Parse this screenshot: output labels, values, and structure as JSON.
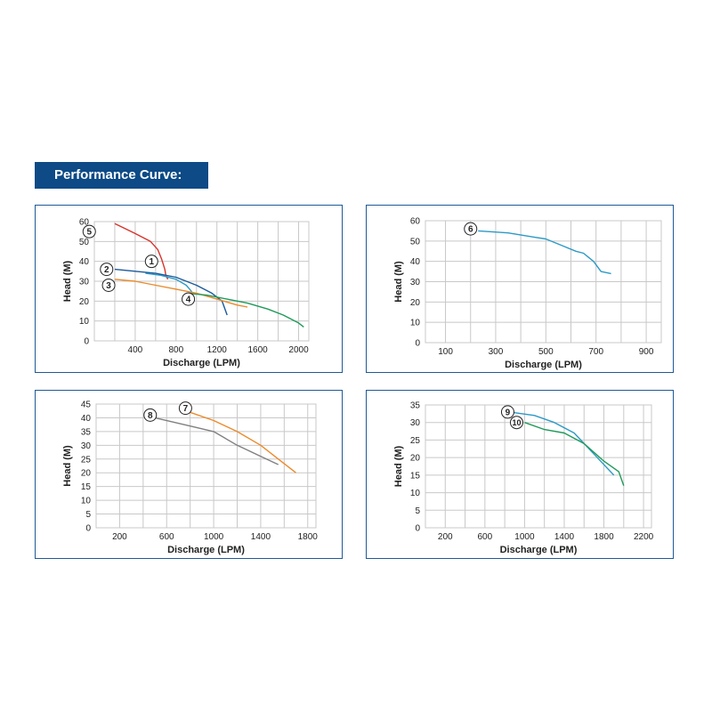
{
  "header": {
    "title": "Performance Curve:"
  },
  "colors": {
    "banner": "#0d4a86",
    "panel_border": "#1f5a96",
    "grid": "#c8c8c8",
    "red": "#d9322a",
    "navy": "#1b5a9c",
    "orange": "#ec8a2a",
    "teal": "#2c9ac6",
    "green": "#1f9a5a",
    "gray": "#808080"
  },
  "chart_data": [
    {
      "type": "line",
      "xlabel": "Discharge (LPM)",
      "ylabel": "Head (M)",
      "xticks": [
        400,
        800,
        1200,
        1600,
        2000
      ],
      "yticks": [
        0,
        10,
        20,
        30,
        40,
        50,
        60
      ],
      "grid": true,
      "series": [
        {
          "name": "5",
          "color": "red",
          "x": [
            200,
            400,
            550,
            620,
            660,
            690,
            700,
            720
          ],
          "y": [
            59,
            54,
            50,
            46,
            41,
            36,
            33,
            31
          ]
        },
        {
          "name": "1",
          "color": "teal",
          "x": [
            500,
            650,
            800,
            900,
            950,
            980
          ],
          "y": [
            34,
            33,
            31,
            28,
            25,
            20
          ]
        },
        {
          "name": "2",
          "color": "navy",
          "x": [
            200,
            400,
            600,
            800,
            1000,
            1150,
            1250,
            1300
          ],
          "y": [
            36,
            35,
            34,
            32,
            28,
            24,
            20,
            13
          ]
        },
        {
          "name": "3",
          "color": "orange",
          "x": [
            200,
            400,
            600,
            800,
            1000,
            1200,
            1400,
            1500
          ],
          "y": [
            31,
            30,
            28,
            26,
            24,
            21,
            18,
            17
          ]
        },
        {
          "name": "4",
          "color": "green",
          "x": [
            900,
            1100,
            1300,
            1500,
            1700,
            1850,
            2000,
            2050
          ],
          "y": [
            24,
            23,
            21,
            19,
            16,
            13,
            9,
            7
          ]
        }
      ],
      "markers": [
        {
          "label": "5",
          "x": -50,
          "y": 55
        },
        {
          "label": "1",
          "x": 560,
          "y": 40
        },
        {
          "label": "2",
          "x": 120,
          "y": 36
        },
        {
          "label": "3",
          "x": 140,
          "y": 28
        },
        {
          "label": "4",
          "x": 920,
          "y": 21
        }
      ]
    },
    {
      "type": "line",
      "xlabel": "Discharge (LPM)",
      "ylabel": "Head (M)",
      "xticks": [
        100,
        300,
        500,
        700,
        900
      ],
      "yticks": [
        0,
        10,
        20,
        30,
        40,
        50,
        60
      ],
      "grid": true,
      "series": [
        {
          "name": "6",
          "color": "teal",
          "x": [
            230,
            350,
            450,
            500,
            560,
            620,
            650,
            670,
            690,
            720,
            760
          ],
          "y": [
            55,
            54,
            52,
            51,
            48,
            45,
            44,
            42,
            40,
            35,
            34
          ]
        }
      ],
      "markers": [
        {
          "label": "6",
          "x": 200,
          "y": 56
        }
      ]
    },
    {
      "type": "line",
      "xlabel": "Discharge (LPM)",
      "ylabel": "Head (M)",
      "xticks": [
        200,
        600,
        1000,
        1400,
        1800
      ],
      "yticks": [
        0,
        5,
        10,
        15,
        20,
        25,
        30,
        35,
        40,
        45
      ],
      "grid": true,
      "series": [
        {
          "name": "7",
          "color": "orange",
          "x": [
            800,
            1000,
            1200,
            1400,
            1550,
            1700
          ],
          "y": [
            42,
            39,
            35,
            30,
            25,
            20
          ]
        },
        {
          "name": "8",
          "color": "gray",
          "x": [
            500,
            800,
            1000,
            1200,
            1400,
            1550
          ],
          "y": [
            40,
            37,
            35,
            30,
            26,
            23
          ]
        }
      ],
      "markers": [
        {
          "label": "7",
          "x": 760,
          "y": 43.5
        },
        {
          "label": "8",
          "x": 460,
          "y": 41
        }
      ]
    },
    {
      "type": "line",
      "xlabel": "Discharge (LPM)",
      "ylabel": "Head (M)",
      "xticks": [
        200,
        600,
        1000,
        1400,
        1800,
        2200
      ],
      "yticks": [
        0,
        5,
        10,
        15,
        20,
        25,
        30,
        35
      ],
      "grid": true,
      "series": [
        {
          "name": "9",
          "color": "teal",
          "x": [
            850,
            1100,
            1300,
            1500,
            1700,
            1900
          ],
          "y": [
            33,
            32,
            30,
            27,
            21,
            15
          ]
        },
        {
          "name": "10",
          "color": "green",
          "x": [
            1000,
            1200,
            1400,
            1600,
            1800,
            1950,
            2000
          ],
          "y": [
            30,
            28,
            27,
            24,
            19,
            16,
            12
          ]
        }
      ],
      "markers": [
        {
          "label": "9",
          "x": 830,
          "y": 33
        },
        {
          "label": "10",
          "x": 920,
          "y": 30
        }
      ]
    }
  ]
}
